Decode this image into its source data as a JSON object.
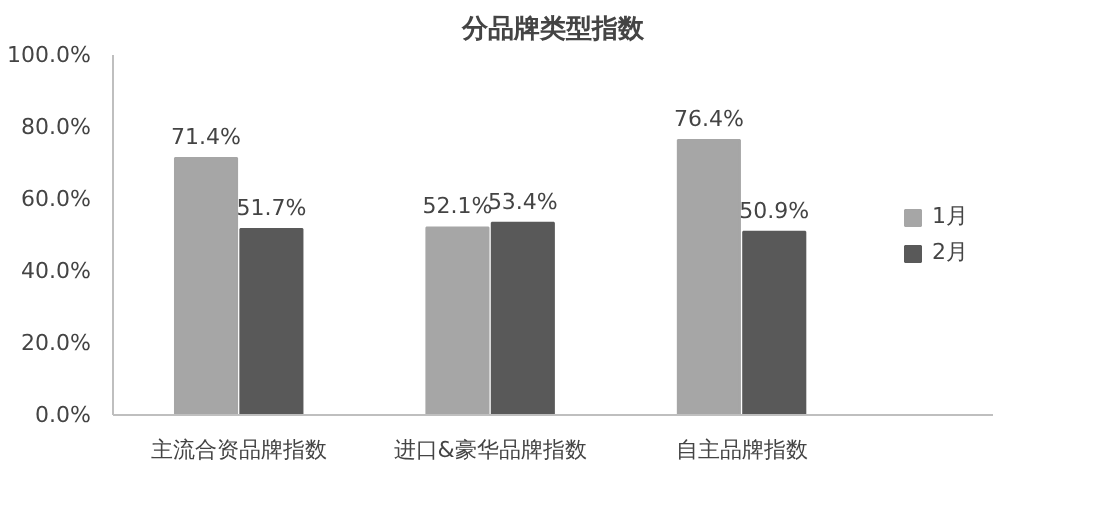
{
  "chart_data": {
    "type": "bar",
    "title": "分品牌类型指数",
    "categories": [
      "主流合资品牌指数",
      "进口&豪华品牌指数",
      "自主品牌指数"
    ],
    "series": [
      {
        "name": "1月",
        "color": "#a6a6a6",
        "values": [
          71.4,
          52.1,
          76.4
        ],
        "value_labels": [
          "71.4%",
          "52.1%",
          "76.4%"
        ]
      },
      {
        "name": "2月",
        "color": "#595959",
        "values": [
          51.7,
          53.4,
          50.9
        ],
        "value_labels": [
          "51.7%",
          "53.4%",
          "50.9%"
        ]
      }
    ],
    "ylim": [
      0,
      100
    ],
    "yticks": [
      {
        "value": 0,
        "label": "0.0%"
      },
      {
        "value": 20,
        "label": "20.0%"
      },
      {
        "value": 40,
        "label": "40.0%"
      },
      {
        "value": 60,
        "label": "60.0%"
      },
      {
        "value": 80,
        "label": "80.0%"
      },
      {
        "value": 100,
        "label": "100.0%"
      }
    ],
    "legend": "right",
    "grid": false
  }
}
